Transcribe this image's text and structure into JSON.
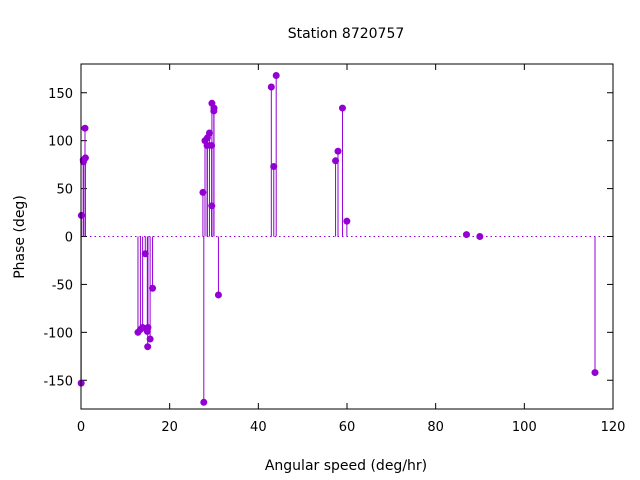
{
  "chart_data": {
    "type": "scatter",
    "style": "impulses-with-points",
    "title": "Station 8720757",
    "xlabel": "Angular speed (deg/hr)",
    "ylabel": "Phase (deg)",
    "xlim": [
      0,
      120
    ],
    "ylim": [
      -180,
      180
    ],
    "xticks": [
      0,
      20,
      40,
      60,
      80,
      100,
      120
    ],
    "yticks": [
      -150,
      -100,
      -50,
      0,
      50,
      100,
      150
    ],
    "x_tick_labels": [
      "0",
      "20",
      "40",
      "60",
      "80",
      "100",
      "120"
    ],
    "y_tick_labels": [
      "-150",
      "-100",
      "-50",
      "0",
      "50",
      "100",
      "150"
    ],
    "grid": false,
    "zero_line": "dotted",
    "color": "#9400d3",
    "points": [
      {
        "x": 0.04,
        "y": -153
      },
      {
        "x": 0.08,
        "y": 22
      },
      {
        "x": 0.5,
        "y": 80
      },
      {
        "x": 0.55,
        "y": 78
      },
      {
        "x": 1.0,
        "y": 82
      },
      {
        "x": 0.9,
        "y": 113
      },
      {
        "x": 12.85,
        "y": -100
      },
      {
        "x": 13.4,
        "y": -97
      },
      {
        "x": 13.9,
        "y": -95
      },
      {
        "x": 14.5,
        "y": -18
      },
      {
        "x": 14.96,
        "y": -99
      },
      {
        "x": 15.04,
        "y": -115
      },
      {
        "x": 15.1,
        "y": -95
      },
      {
        "x": 15.59,
        "y": -107
      },
      {
        "x": 16.14,
        "y": -54
      },
      {
        "x": 27.5,
        "y": 46
      },
      {
        "x": 27.7,
        "y": -173
      },
      {
        "x": 27.97,
        "y": 100
      },
      {
        "x": 28.44,
        "y": 95
      },
      {
        "x": 28.51,
        "y": 103
      },
      {
        "x": 28.98,
        "y": 108
      },
      {
        "x": 29.46,
        "y": 95
      },
      {
        "x": 29.5,
        "y": 32
      },
      {
        "x": 29.53,
        "y": 139
      },
      {
        "x": 29.96,
        "y": 131
      },
      {
        "x": 30.0,
        "y": 134
      },
      {
        "x": 31.0,
        "y": -61
      },
      {
        "x": 42.93,
        "y": 156
      },
      {
        "x": 43.48,
        "y": 73
      },
      {
        "x": 44.03,
        "y": 168
      },
      {
        "x": 57.42,
        "y": 79
      },
      {
        "x": 57.97,
        "y": 89
      },
      {
        "x": 58.98,
        "y": 134
      },
      {
        "x": 59.97,
        "y": 16
      },
      {
        "x": 86.95,
        "y": 2
      },
      {
        "x": 89.96,
        "y": 0
      },
      {
        "x": 115.94,
        "y": -142
      }
    ]
  }
}
